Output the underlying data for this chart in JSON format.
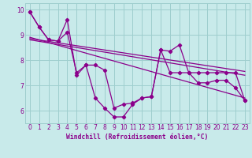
{
  "x": [
    0,
    1,
    2,
    3,
    4,
    5,
    6,
    7,
    8,
    9,
    10,
    11,
    12,
    13,
    14,
    15,
    16,
    17,
    18,
    19,
    20,
    21,
    22,
    23
  ],
  "series1": [
    9.9,
    9.3,
    8.8,
    8.75,
    9.1,
    7.5,
    7.8,
    6.5,
    6.1,
    5.75,
    5.75,
    6.25,
    6.5,
    6.55,
    8.4,
    8.35,
    8.6,
    7.5,
    7.1,
    7.1,
    7.2,
    7.2,
    6.9,
    6.4
  ],
  "series2": [
    9.9,
    9.3,
    8.8,
    8.75,
    9.6,
    7.4,
    7.8,
    7.8,
    7.6,
    6.1,
    6.25,
    6.3,
    6.5,
    6.55,
    8.4,
    7.5,
    7.5,
    7.5,
    7.5,
    7.5,
    7.5,
    7.5,
    7.5,
    6.4
  ],
  "tline1_x": [
    0,
    23
  ],
  "tline1_y": [
    8.8,
    7.4
  ],
  "tline2_x": [
    0,
    23
  ],
  "tline2_y": [
    8.85,
    7.55
  ],
  "tline3_x": [
    0,
    23
  ],
  "tline3_y": [
    8.9,
    6.5
  ],
  "color": "#8b008b",
  "bg_color": "#c8eaea",
  "grid_color": "#9ecece",
  "xlabel": "Windchill (Refroidissement éolien,°C)",
  "ylim": [
    5.5,
    10.25
  ],
  "xlim": [
    -0.5,
    23.5
  ],
  "yticks": [
    6,
    7,
    8,
    9,
    10
  ],
  "xticks": [
    0,
    1,
    2,
    3,
    4,
    5,
    6,
    7,
    8,
    9,
    10,
    11,
    12,
    13,
    14,
    15,
    16,
    17,
    18,
    19,
    20,
    21,
    22,
    23
  ]
}
